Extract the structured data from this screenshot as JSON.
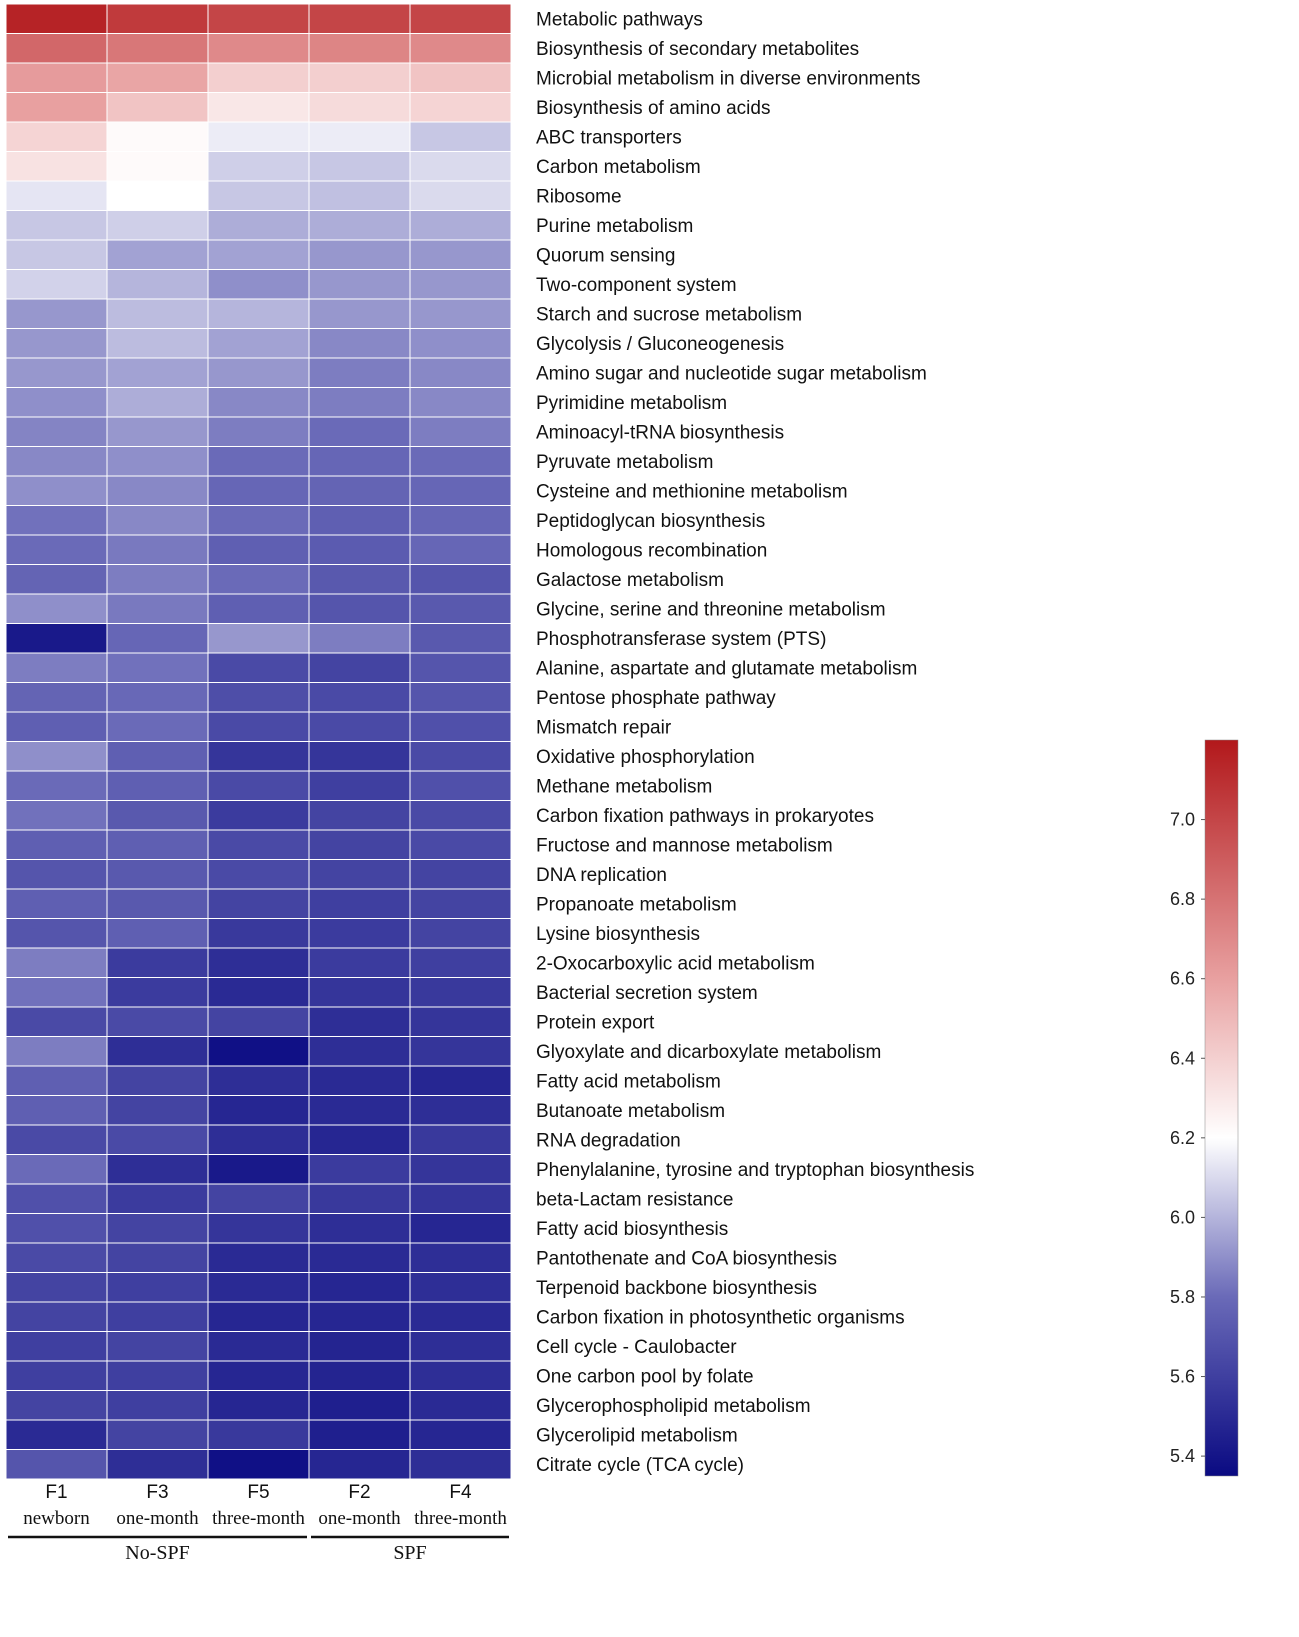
{
  "chart_data": {
    "type": "heatmap",
    "columns": [
      {
        "id": "F1",
        "age": "newborn",
        "group": "No-SPF"
      },
      {
        "id": "F3",
        "age": "one-month",
        "group": "No-SPF"
      },
      {
        "id": "F5",
        "age": "three-month",
        "group": "No-SPF"
      },
      {
        "id": "F2",
        "age": "one-month",
        "group": "SPF"
      },
      {
        "id": "F4",
        "age": "three-month",
        "group": "SPF"
      }
    ],
    "groups": [
      "No-SPF",
      "SPF"
    ],
    "rows": [
      "Metabolic pathways",
      "Biosynthesis of secondary metabolites",
      "Microbial metabolism in diverse environments",
      "Biosynthesis of amino acids",
      "ABC transporters",
      "Carbon metabolism",
      "Ribosome",
      "Purine metabolism",
      "Quorum sensing",
      "Two-component system",
      "Starch and sucrose metabolism",
      "Glycolysis / Gluconeogenesis",
      "Amino sugar and nucleotide sugar metabolism",
      "Pyrimidine metabolism",
      "Aminoacyl-tRNA biosynthesis",
      "Pyruvate metabolism",
      "Cysteine and methionine metabolism",
      "Peptidoglycan biosynthesis",
      "Homologous recombination",
      "Galactose metabolism",
      "Glycine, serine and threonine metabolism",
      "Phosphotransferase system (PTS)",
      "Alanine, aspartate and glutamate metabolism",
      "Pentose phosphate pathway",
      "Mismatch repair",
      "Oxidative phosphorylation",
      "Methane metabolism",
      "Carbon fixation pathways in prokaryotes",
      "Fructose and mannose metabolism",
      "DNA replication",
      "Propanoate metabolism",
      "Lysine biosynthesis",
      "2-Oxocarboxylic acid metabolism",
      "Bacterial secretion system",
      "Protein export",
      "Glyoxylate and dicarboxylate metabolism",
      "Fatty acid metabolism",
      "Butanoate metabolism",
      "RNA degradation",
      "Phenylalanine, tyrosine and tryptophan biosynthesis",
      "beta-Lactam resistance",
      "Fatty acid biosynthesis",
      "Pantothenate and CoA biosynthesis",
      "Terpenoid backbone biosynthesis",
      "Carbon fixation in photosynthetic organisms",
      "Cell cycle - Caulobacter",
      "One carbon pool by folate",
      "Glycerophospholipid metabolism",
      "Glycerolipid metabolism",
      "Citrate cycle (TCA cycle)"
    ],
    "values": [
      [
        7.15,
        7.05,
        7.0,
        7.0,
        7.0
      ],
      [
        6.85,
        6.78,
        6.7,
        6.72,
        6.7
      ],
      [
        6.62,
        6.58,
        6.4,
        6.4,
        6.45
      ],
      [
        6.6,
        6.45,
        6.3,
        6.35,
        6.38
      ],
      [
        6.38,
        6.22,
        6.15,
        6.15,
        6.05
      ],
      [
        6.32,
        6.22,
        6.07,
        6.05,
        6.1
      ],
      [
        6.13,
        6.2,
        6.05,
        6.03,
        6.1
      ],
      [
        6.05,
        6.07,
        5.98,
        5.98,
        5.98
      ],
      [
        6.05,
        5.95,
        5.95,
        5.92,
        5.92
      ],
      [
        6.08,
        6.0,
        5.9,
        5.92,
        5.92
      ],
      [
        5.92,
        6.02,
        6.0,
        5.92,
        5.92
      ],
      [
        5.92,
        6.02,
        5.95,
        5.88,
        5.9
      ],
      [
        5.92,
        5.95,
        5.92,
        5.85,
        5.88
      ],
      [
        5.9,
        5.98,
        5.88,
        5.85,
        5.88
      ],
      [
        5.87,
        5.92,
        5.85,
        5.8,
        5.85
      ],
      [
        5.88,
        5.9,
        5.8,
        5.78,
        5.8
      ],
      [
        5.9,
        5.88,
        5.78,
        5.77,
        5.78
      ],
      [
        5.82,
        5.88,
        5.8,
        5.75,
        5.78
      ],
      [
        5.8,
        5.84,
        5.75,
        5.73,
        5.78
      ],
      [
        5.77,
        5.85,
        5.8,
        5.72,
        5.7
      ],
      [
        5.9,
        5.84,
        5.75,
        5.7,
        5.72
      ],
      [
        5.42,
        5.78,
        5.92,
        5.85,
        5.72
      ],
      [
        5.85,
        5.82,
        5.65,
        5.62,
        5.7
      ],
      [
        5.77,
        5.79,
        5.67,
        5.65,
        5.7
      ],
      [
        5.75,
        5.8,
        5.65,
        5.65,
        5.68
      ],
      [
        5.9,
        5.75,
        5.55,
        5.55,
        5.65
      ],
      [
        5.8,
        5.75,
        5.65,
        5.6,
        5.68
      ],
      [
        5.82,
        5.72,
        5.58,
        5.62,
        5.65
      ],
      [
        5.75,
        5.75,
        5.65,
        5.62,
        5.65
      ],
      [
        5.7,
        5.72,
        5.65,
        5.62,
        5.62
      ],
      [
        5.75,
        5.72,
        5.62,
        5.6,
        5.62
      ],
      [
        5.7,
        5.75,
        5.57,
        5.58,
        5.62
      ],
      [
        5.85,
        5.58,
        5.52,
        5.58,
        5.6
      ],
      [
        5.82,
        5.58,
        5.5,
        5.55,
        5.57
      ],
      [
        5.65,
        5.65,
        5.62,
        5.52,
        5.55
      ],
      [
        5.85,
        5.52,
        5.38,
        5.52,
        5.55
      ],
      [
        5.75,
        5.62,
        5.52,
        5.5,
        5.48
      ],
      [
        5.75,
        5.62,
        5.48,
        5.5,
        5.52
      ],
      [
        5.65,
        5.65,
        5.52,
        5.48,
        5.57
      ],
      [
        5.8,
        5.52,
        5.42,
        5.58,
        5.55
      ],
      [
        5.68,
        5.58,
        5.62,
        5.57,
        5.55
      ],
      [
        5.68,
        5.62,
        5.55,
        5.52,
        5.48
      ],
      [
        5.65,
        5.62,
        5.5,
        5.5,
        5.52
      ],
      [
        5.62,
        5.6,
        5.5,
        5.48,
        5.52
      ],
      [
        5.62,
        5.6,
        5.48,
        5.48,
        5.5
      ],
      [
        5.6,
        5.62,
        5.5,
        5.47,
        5.52
      ],
      [
        5.6,
        5.6,
        5.48,
        5.47,
        5.52
      ],
      [
        5.62,
        5.6,
        5.48,
        5.45,
        5.5
      ],
      [
        5.5,
        5.62,
        5.57,
        5.45,
        5.48
      ],
      [
        5.7,
        5.52,
        5.38,
        5.48,
        5.52
      ]
    ],
    "color_scale": {
      "min": 5.35,
      "max": 7.2,
      "ticks": [
        5.4,
        5.6,
        5.8,
        6.0,
        6.2,
        6.4,
        6.6,
        6.8,
        7.0
      ],
      "tick_labels": [
        "5.4",
        "5.6",
        "5.8",
        "6.0",
        "6.2",
        "6.4",
        "6.6",
        "6.8",
        "7.0"
      ],
      "stops": [
        {
          "value": 5.35,
          "color": "#0a0a82"
        },
        {
          "value": 5.8,
          "color": "#6a6ab8"
        },
        {
          "value": 6.2,
          "color": "#ffffff"
        },
        {
          "value": 6.6,
          "color": "#e8a0a0"
        },
        {
          "value": 7.2,
          "color": "#b2181b"
        }
      ]
    },
    "title": "",
    "xlabel": "",
    "ylabel": "",
    "legend": "right"
  }
}
